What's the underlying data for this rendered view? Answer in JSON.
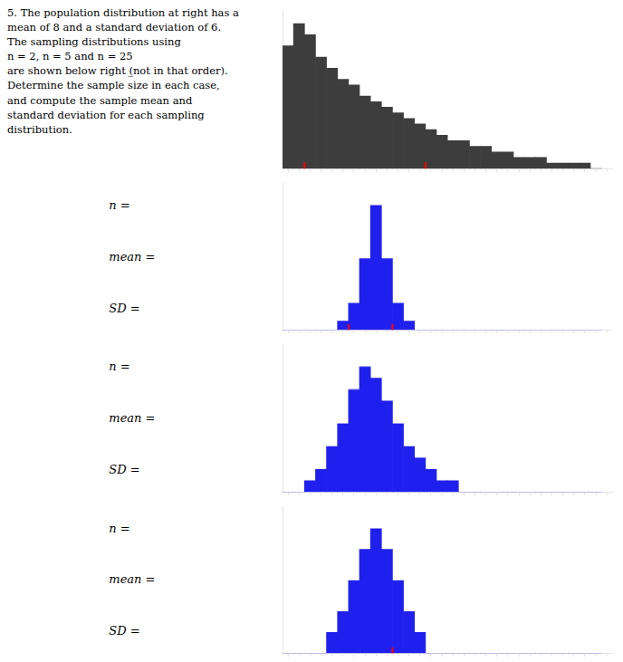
{
  "chart_data": [
    {
      "type": "histogram",
      "annotations": [
        "5. The population distribution at right has a",
        "mean of 8 and a standard deviation of 6.",
        "The sampling distributions using",
        "n = 2, n = 5 and n = 25",
        "are shown below right (̲not in that order).",
        "Determine the sample size in each case,",
        "and compute the sample mean and",
        "standard deviation for each sampling",
        "distribution."
      ],
      "bins": [
        0,
        1,
        2,
        3,
        4,
        5,
        6,
        7,
        8,
        9,
        10,
        11,
        12,
        13,
        14,
        15,
        16,
        17,
        18,
        19,
        20,
        21,
        22,
        23,
        24,
        25,
        26,
        27,
        28,
        29
      ],
      "values": [
        22,
        26,
        24,
        20,
        18,
        16,
        15,
        13,
        12,
        11,
        10,
        9,
        8,
        7,
        6,
        5,
        5,
        4,
        4,
        3,
        3,
        2,
        2,
        2,
        1,
        1,
        1,
        1,
        0
      ],
      "color": "#3d3d3d",
      "xlim": [
        0,
        30
      ],
      "xticks": [
        0,
        1,
        2,
        3,
        4,
        5,
        6,
        7,
        8,
        9,
        10,
        11,
        12,
        13,
        14,
        15,
        16,
        17,
        18,
        19,
        20,
        21,
        22,
        23,
        24,
        25,
        26,
        27,
        28,
        29,
        30
      ],
      "ylim": [
        0,
        28.6
      ],
      "x_marks": {
        "values": [
          2,
          13
        ],
        "color": "#ff0000"
      },
      "grid": false,
      "tick_labels": false,
      "legend": false
    },
    {
      "type": "histogram",
      "annotations": [
        "n =",
        "mean =",
        "SD ="
      ],
      "bins": [
        0,
        1,
        2,
        3,
        4,
        5,
        6,
        7,
        8,
        9,
        10,
        11,
        12,
        13,
        14,
        15,
        16,
        17,
        18,
        19,
        20,
        21,
        22,
        23,
        24,
        25,
        26,
        27,
        28,
        29
      ],
      "values": [
        0,
        0,
        0,
        0,
        0,
        1,
        3,
        8,
        14,
        8,
        3,
        1,
        0,
        0,
        0,
        0,
        0,
        0,
        0,
        0,
        0,
        0,
        0,
        0,
        0,
        0,
        0,
        0,
        0
      ],
      "color": "#2020EE",
      "xlim": [
        0,
        30
      ],
      "xticks": [
        0,
        1,
        2,
        3,
        4,
        5,
        6,
        7,
        8,
        9,
        10,
        11,
        12,
        13,
        14,
        15,
        16,
        17,
        18,
        19,
        20,
        21,
        22,
        23,
        24,
        25,
        26,
        27,
        28,
        29,
        30
      ],
      "ylim": [
        0,
        16.52
      ],
      "x_marks": {
        "values": [
          6,
          10
        ],
        "color": "#ff0000"
      },
      "grid": false,
      "tick_labels": false,
      "legend": false
    },
    {
      "type": "histogram",
      "annotations": [
        "n =",
        "mean =",
        "SD ="
      ],
      "bins": [
        0,
        1,
        2,
        3,
        4,
        5,
        6,
        7,
        8,
        9,
        10,
        11,
        12,
        13,
        14,
        15,
        16,
        17,
        18,
        19,
        20,
        21,
        22,
        23,
        24,
        25,
        26,
        27,
        28,
        29
      ],
      "values": [
        0,
        0,
        1,
        2,
        4,
        6,
        9,
        11,
        10,
        8,
        6,
        4,
        3,
        2,
        1,
        1,
        0,
        0,
        0,
        0,
        0,
        0,
        0,
        0,
        0,
        0,
        0,
        0,
        0
      ],
      "color": "#2020EE",
      "xlim": [
        0,
        30
      ],
      "xticks": [
        0,
        1,
        2,
        3,
        4,
        5,
        6,
        7,
        8,
        9,
        10,
        11,
        12,
        13,
        14,
        15,
        16,
        17,
        18,
        19,
        20,
        21,
        22,
        23,
        24,
        25,
        26,
        27,
        28,
        29,
        30
      ],
      "ylim": [
        0,
        12.98
      ],
      "grid": false,
      "tick_labels": false,
      "legend": false
    },
    {
      "type": "histogram",
      "annotations": [
        "n =",
        "mean =",
        "SD ="
      ],
      "bins": [
        0,
        1,
        2,
        3,
        4,
        5,
        6,
        7,
        8,
        9,
        10,
        11,
        12,
        13,
        14,
        15,
        16,
        17,
        18,
        19,
        20,
        21,
        22,
        23,
        24,
        25,
        26,
        27,
        28,
        29
      ],
      "values": [
        0,
        0,
        0,
        0,
        2,
        4,
        7,
        10,
        12,
        10,
        7,
        4,
        2,
        0,
        0,
        0,
        0,
        0,
        0,
        0,
        0,
        0,
        0,
        0,
        0,
        0,
        0,
        0,
        0
      ],
      "color": "#2020EE",
      "xlim": [
        0,
        30
      ],
      "xticks": [
        0,
        1,
        2,
        3,
        4,
        5,
        6,
        7,
        8,
        9,
        10,
        11,
        12,
        13,
        14,
        15,
        16,
        17,
        18,
        19,
        20,
        21,
        22,
        23,
        24,
        25,
        26,
        27,
        28,
        29,
        30
      ],
      "ylim": [
        0,
        14.16
      ],
      "x_marks": {
        "values": [
          10
        ],
        "color": "#ff0000"
      },
      "grid": false,
      "tick_labels": false,
      "legend": false
    }
  ]
}
